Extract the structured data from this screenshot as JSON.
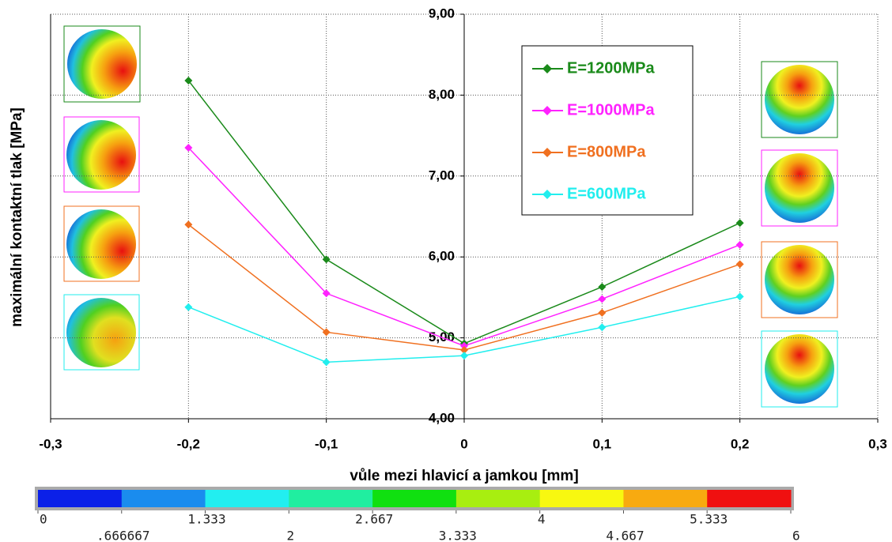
{
  "chart_data": {
    "type": "line",
    "x_label": "vůle mezi hlavicí a jamkou [mm]",
    "y_label": "maximální kontaktní tlak [MPa]",
    "x": [
      -0.2,
      -0.1,
      0,
      0.1,
      0.2
    ],
    "series": [
      {
        "name": "E=1200MPa",
        "color": "#1a8a1a",
        "values": [
          8.18,
          5.97,
          4.93,
          5.63,
          6.42
        ]
      },
      {
        "name": "E=1000MPa",
        "color": "#ff22ff",
        "values": [
          7.35,
          5.55,
          4.9,
          5.48,
          6.15
        ]
      },
      {
        "name": "E=800MPa",
        "color": "#f07020",
        "values": [
          6.4,
          5.07,
          4.85,
          5.31,
          5.91
        ]
      },
      {
        "name": "E=600MPa",
        "color": "#22eeee",
        "values": [
          5.38,
          4.7,
          4.78,
          5.13,
          5.51
        ]
      }
    ],
    "xlim": [
      -0.3,
      0.3
    ],
    "xticks": [
      {
        "value": -0.3,
        "label": "-0,3"
      },
      {
        "value": -0.2,
        "label": "-0,2"
      },
      {
        "value": -0.1,
        "label": "-0,1"
      },
      0,
      {
        "value": 0.1,
        "label": "0,1"
      },
      {
        "value": 0.2,
        "label": "0,2"
      },
      {
        "value": 0.3,
        "label": "0,3"
      }
    ],
    "ylim": [
      4,
      9
    ],
    "yticks": [
      {
        "value": 4,
        "label": "4,00"
      },
      {
        "value": 5,
        "label": "5,00"
      },
      {
        "value": 6,
        "label": "6,00"
      },
      {
        "value": 7,
        "label": "7,00"
      },
      {
        "value": 8,
        "label": "8,00"
      },
      {
        "value": 9,
        "label": "9,00"
      }
    ],
    "grid": true,
    "colorbar": {
      "lim": [
        0,
        6
      ],
      "colors": [
        "#0b20e8",
        "#1a8cee",
        "#22eef0",
        "#20eea0",
        "#10e010",
        "#a8ee10",
        "#f8f810",
        "#f8aa10",
        "#f01010"
      ],
      "ticks": [
        0,
        {
          "value": 0.666667,
          "label": ".666667"
        },
        1.333,
        2,
        2.667,
        3.333,
        4,
        4.667,
        5.333,
        6
      ]
    }
  }
}
